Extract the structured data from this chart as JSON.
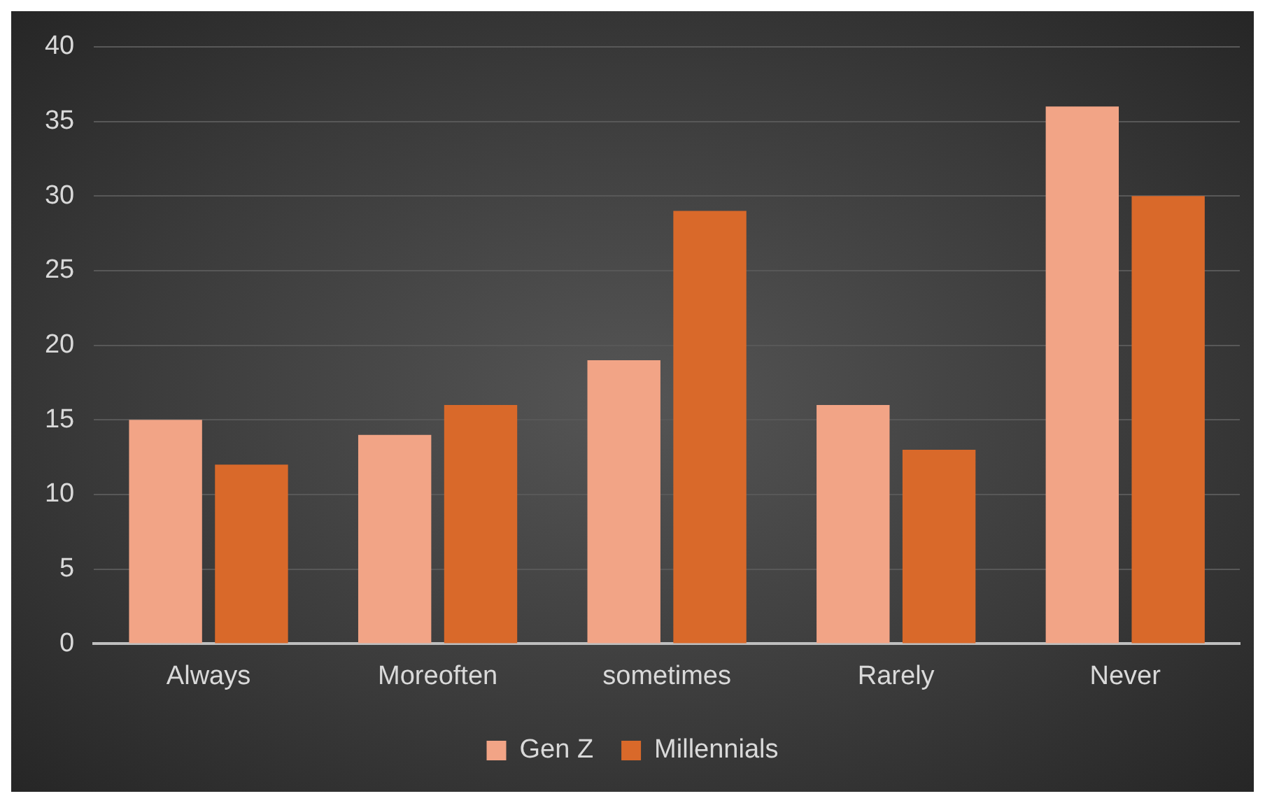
{
  "chart_data": {
    "type": "bar",
    "categories": [
      "Always",
      "Moreoften",
      "sometimes",
      "Rarely",
      "Never"
    ],
    "series": [
      {
        "name": "Gen Z",
        "color": "#f2a486",
        "values": [
          15,
          14,
          19,
          16,
          36
        ]
      },
      {
        "name": "Millennials",
        "color": "#d9692a",
        "values": [
          12,
          16,
          29,
          13,
          30
        ]
      }
    ],
    "ylim": [
      0,
      40
    ],
    "yticks": [
      0,
      5,
      10,
      15,
      20,
      25,
      30,
      35,
      40
    ],
    "grid": "y",
    "legend": "bottom"
  }
}
